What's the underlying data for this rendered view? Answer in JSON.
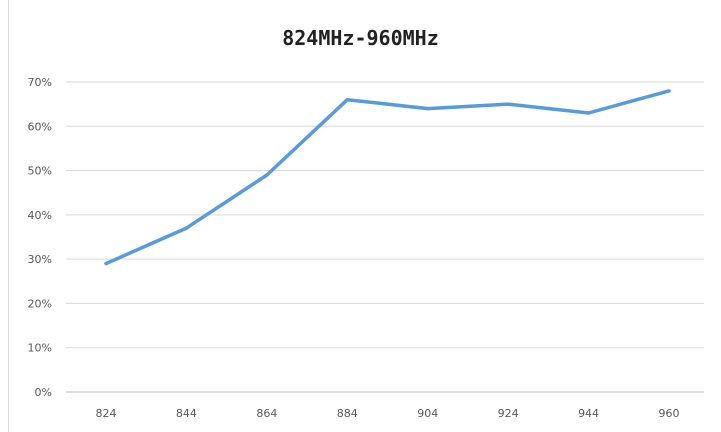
{
  "chart_data": {
    "type": "line",
    "title": "824MHz-960MHz",
    "xlabel": "",
    "ylabel": "",
    "categories": [
      "824",
      "844",
      "864",
      "884",
      "904",
      "924",
      "944",
      "960"
    ],
    "series": [
      {
        "values": [
          29,
          37,
          49,
          66,
          64,
          65,
          63,
          68
        ],
        "color": "#5b9bd5"
      }
    ],
    "yticks": [
      "0%",
      "10%",
      "20%",
      "30%",
      "40%",
      "50%",
      "60%",
      "70%"
    ],
    "ylim": [
      0,
      70
    ],
    "grid": true,
    "legend": "none"
  }
}
